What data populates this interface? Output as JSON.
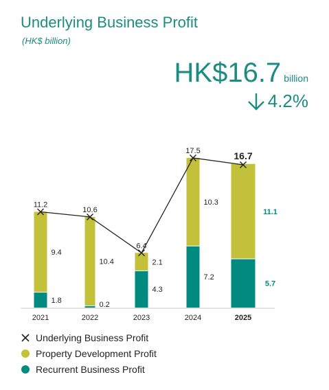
{
  "header": {
    "title": "Underlying Business Profit",
    "subtitle": "(HK$ billion)",
    "headline_value": "HK$16.7",
    "headline_unit": "billion",
    "change_text": "4.2%",
    "change_icon": "down-arrow-icon"
  },
  "colors": {
    "accent": "#1a8c82",
    "property": "#c3c03a",
    "recurrent": "#008a80",
    "line": "#231f20"
  },
  "chart_data": {
    "type": "bar",
    "stacked": true,
    "categories": [
      "2021",
      "2022",
      "2023",
      "2024",
      "2025"
    ],
    "series": [
      {
        "name": "Recurrent Business Profit",
        "values": [
          1.8,
          0.2,
          4.3,
          7.2,
          5.7
        ]
      },
      {
        "name": "Property Development Profit",
        "values": [
          9.4,
          10.4,
          2.1,
          10.3,
          11.1
        ]
      }
    ],
    "line_series": {
      "name": "Underlying Business Profit",
      "values": [
        11.2,
        10.6,
        6.4,
        17.5,
        16.7
      ]
    },
    "ylim": [
      0,
      18
    ],
    "grid": false,
    "highlight_category": "2025",
    "legend_position": "bottom-left"
  },
  "legend": [
    {
      "label": "Underlying Business Profit",
      "marker": "cross"
    },
    {
      "label": "Property Development Profit",
      "marker": "property-dot"
    },
    {
      "label": "Recurrent Business Profit",
      "marker": "recurrent-dot"
    }
  ]
}
